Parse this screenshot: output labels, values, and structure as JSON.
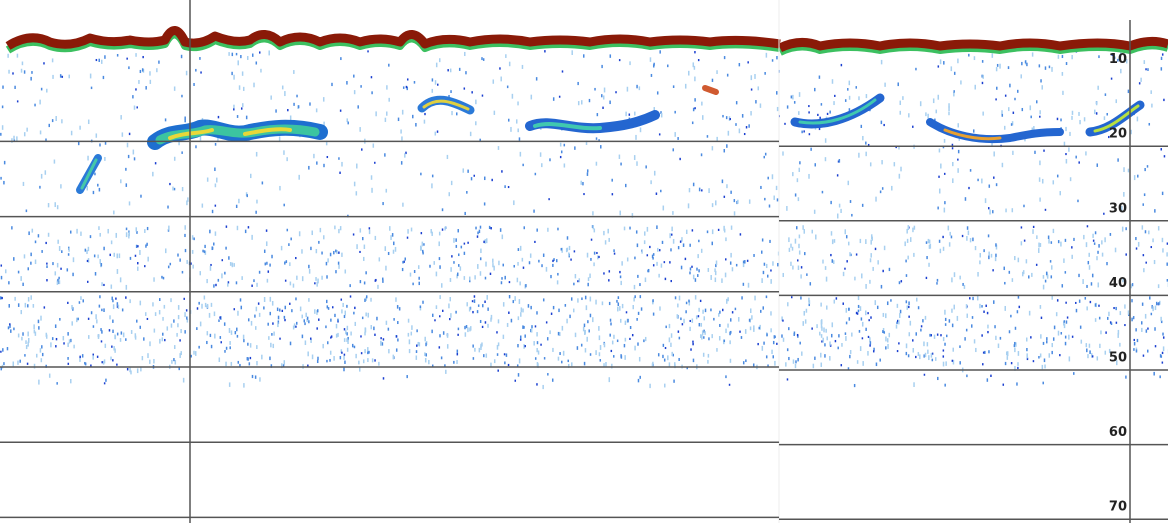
{
  "depth_scale": {
    "labels": [
      10,
      20,
      30,
      40,
      50,
      60,
      70
    ]
  }
}
